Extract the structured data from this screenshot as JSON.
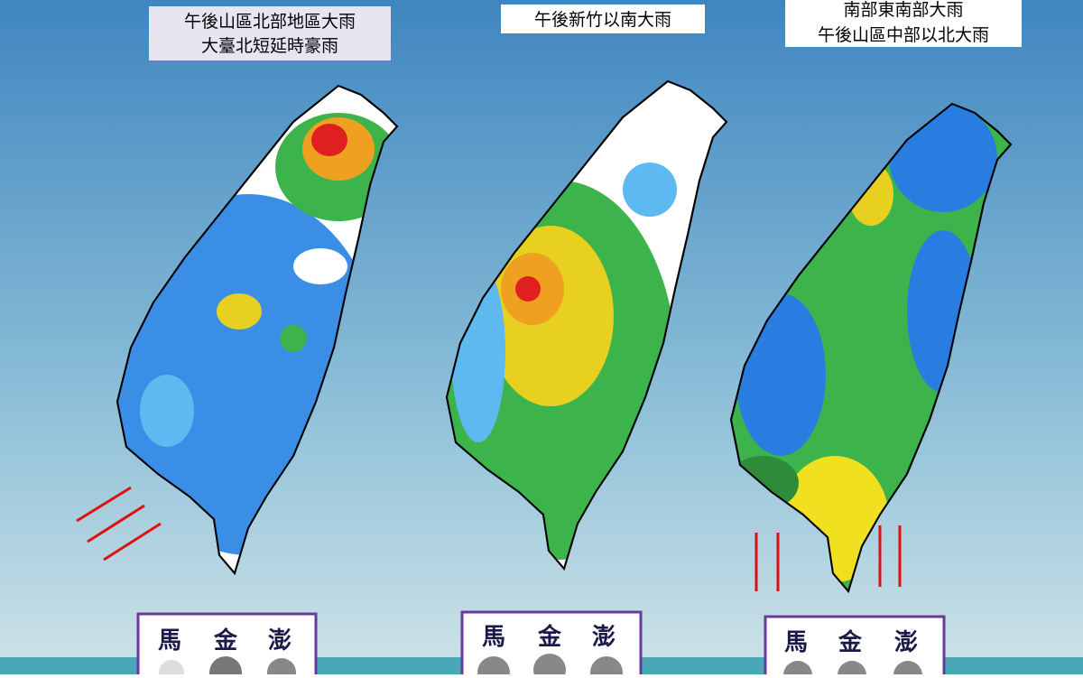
{
  "panels": [
    {
      "labels": [
        "午後山區北部地區大雨",
        "大臺北短延時豪雨"
      ],
      "islands": [
        "馬",
        "金",
        "澎"
      ]
    },
    {
      "labels": [
        "午後新竹以南大雨"
      ],
      "islands": [
        "馬",
        "金",
        "澎"
      ]
    },
    {
      "labels": [
        "南部東南部大雨",
        "午後山區中部以北大雨"
      ],
      "islands": [
        "馬",
        "金",
        "澎"
      ]
    }
  ]
}
